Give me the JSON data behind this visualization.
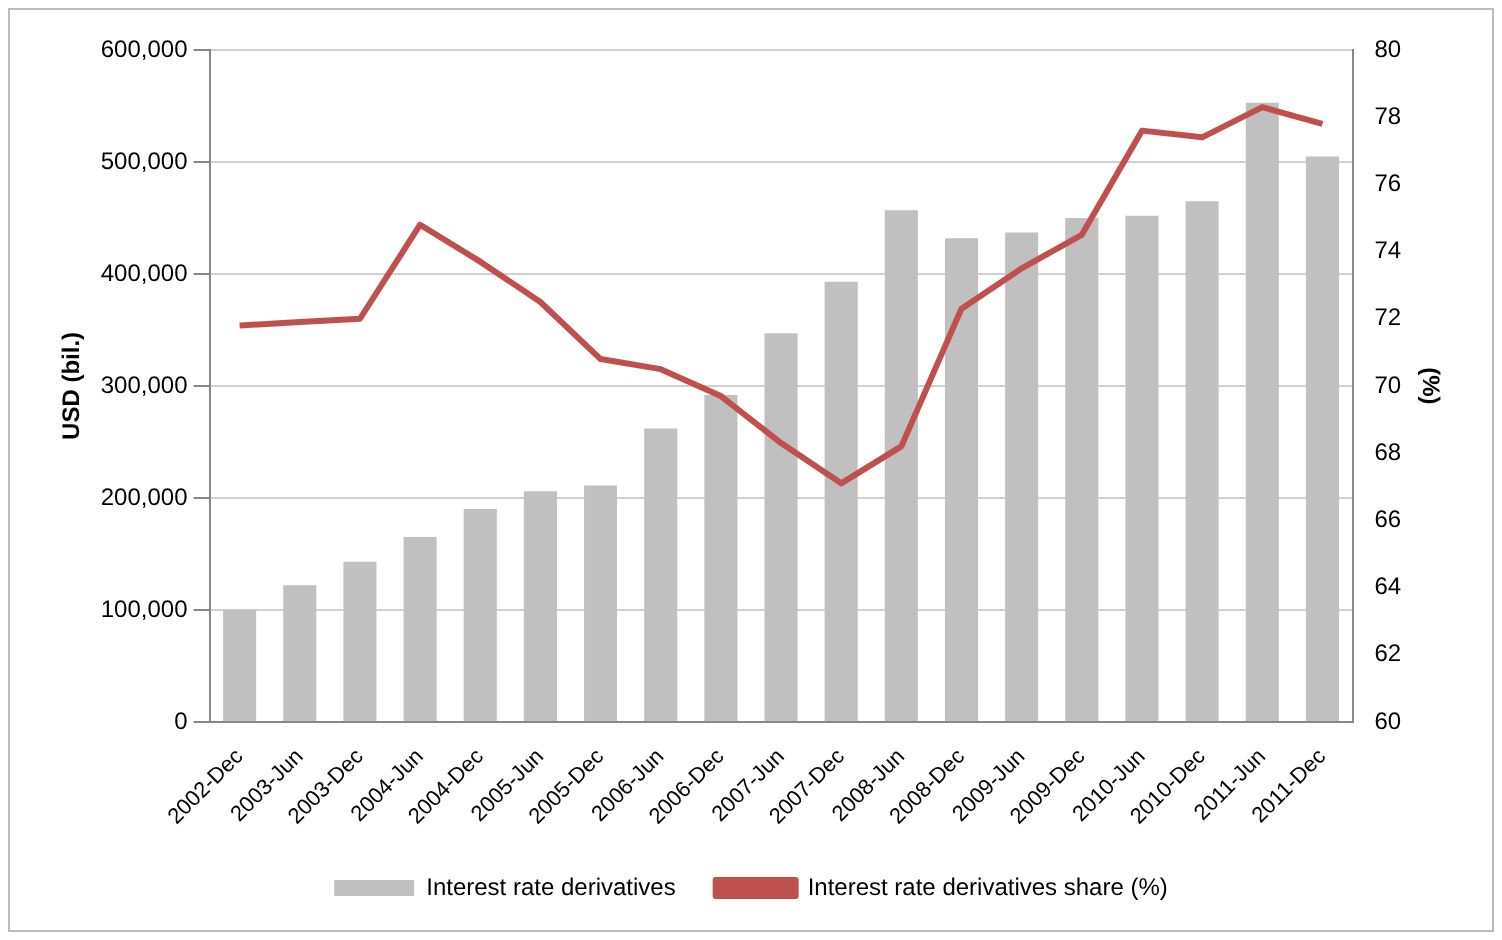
{
  "chart_data": {
    "type": "bar",
    "categories": [
      "2002-Dec",
      "2003-Jun",
      "2003-Dec",
      "2004-Jun",
      "2004-Dec",
      "2005-Jun",
      "2005-Dec",
      "2006-Jun",
      "2006-Dec",
      "2007-Jun",
      "2007-Dec",
      "2008-Jun",
      "2008-Dec",
      "2009-Jun",
      "2009-Dec",
      "2010-Jun",
      "2010-Dec",
      "2011-Jun",
      "2011-Dec"
    ],
    "ylabel": "USD (bil.)",
    "y2label": "(%)",
    "ylim": [
      0,
      600000
    ],
    "yticks": [
      {
        "value": 0,
        "label": "0"
      },
      {
        "value": 100000,
        "label": "100,000"
      },
      {
        "value": 200000,
        "label": "200,000"
      },
      {
        "value": 300000,
        "label": "300,000"
      },
      {
        "value": 400000,
        "label": "400,000"
      },
      {
        "value": 500000,
        "label": "500,000"
      },
      {
        "value": 600000,
        "label": "600,000"
      }
    ],
    "y2lim": [
      60,
      80
    ],
    "y2ticks": [
      60,
      62,
      64,
      66,
      68,
      70,
      72,
      74,
      76,
      78,
      80
    ],
    "grid": "y",
    "legend": "bottom",
    "series": [
      {
        "name": "Interest rate derivatives",
        "color": "#c0c0c0",
        "values": [
          100000,
          122000,
          143000,
          165000,
          190000,
          206000,
          211000,
          262000,
          292000,
          347000,
          393000,
          457000,
          432000,
          437000,
          450000,
          452000,
          465000,
          553000,
          505000
        ]
      },
      {
        "name": "Interest rate derivatives share (%)",
        "type": "line",
        "axis": "y2",
        "color": "#c0504d",
        "values": [
          71.8,
          71.9,
          72.0,
          74.8,
          73.7,
          72.5,
          70.8,
          70.5,
          69.7,
          68.3,
          67.1,
          68.2,
          72.3,
          73.5,
          74.5,
          77.6,
          77.4,
          78.3,
          77.8
        ]
      }
    ]
  }
}
